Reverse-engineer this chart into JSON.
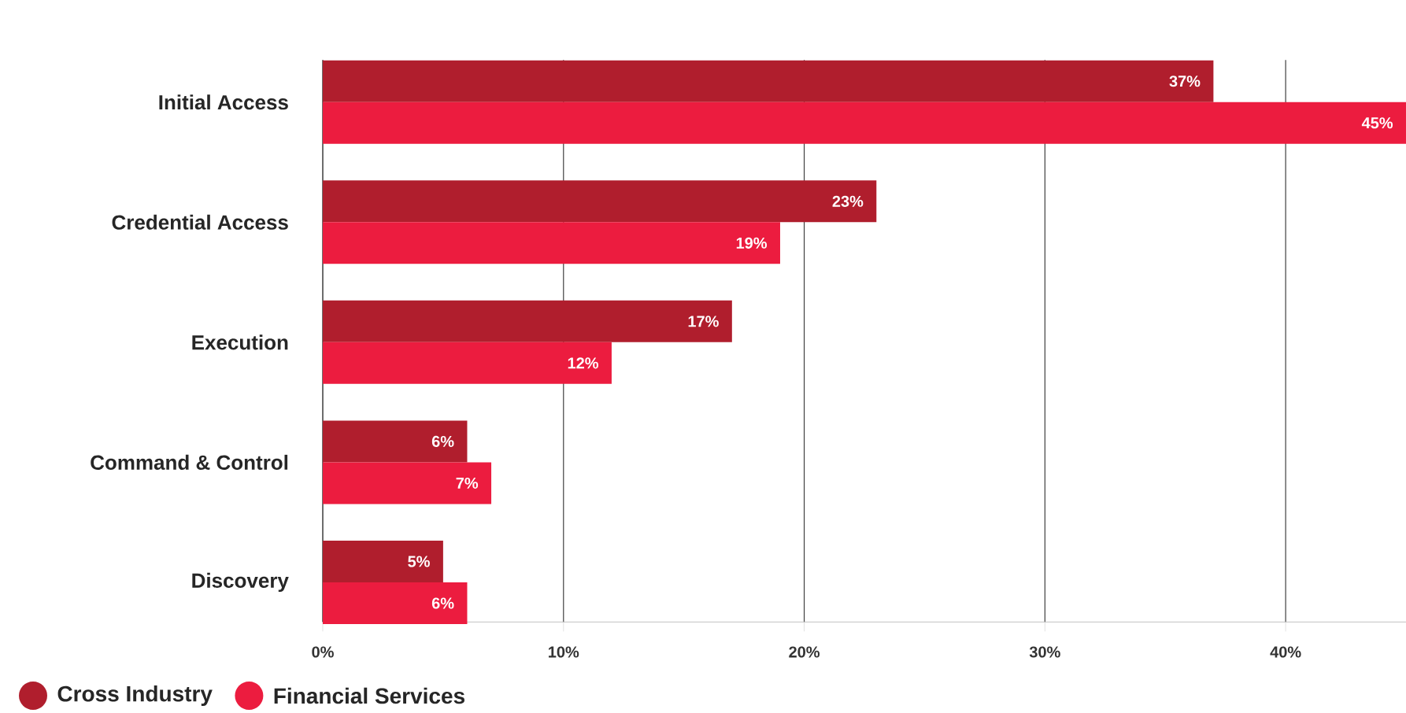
{
  "chart_data": {
    "type": "bar",
    "orientation": "horizontal",
    "categories": [
      "Initial Access",
      "Credential Access",
      "Execution",
      "Command & Control",
      "Discovery"
    ],
    "series": [
      {
        "name": "Cross Industry",
        "color": "#b01e2d",
        "values": [
          37,
          23,
          17,
          6,
          5
        ],
        "value_labels": [
          "37%",
          "23%",
          "17%",
          "6%",
          "5%"
        ]
      },
      {
        "name": "Financial Services",
        "color": "#ec1c3f",
        "values": [
          45,
          19,
          12,
          7,
          6
        ],
        "value_labels": [
          "45%",
          "19%",
          "12%",
          "7%",
          "6%"
        ]
      }
    ],
    "xlim": [
      0,
      45
    ],
    "xticks": [
      {
        "value": 0,
        "label": "0%"
      },
      {
        "value": 10,
        "label": "10%"
      },
      {
        "value": 20,
        "label": "20%"
      },
      {
        "value": 30,
        "label": "30%"
      },
      {
        "value": 40,
        "label": "40%"
      }
    ],
    "grid": "x",
    "legend": "bottom left"
  }
}
